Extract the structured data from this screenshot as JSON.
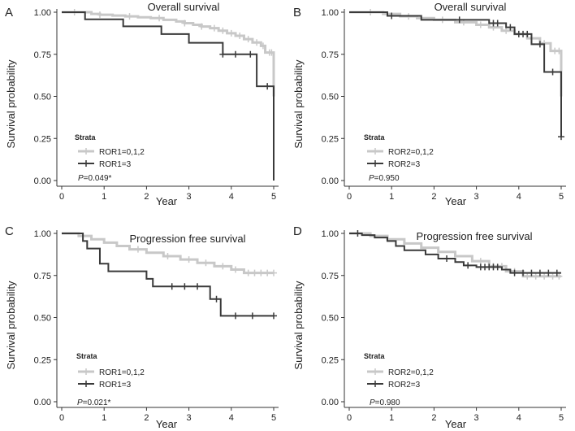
{
  "colors": {
    "gray": "#c8c8c8",
    "dark": "#3a3a3a",
    "axis": "#333333",
    "text": "#222222"
  },
  "chart_data": [
    {
      "type": "line",
      "panel_label": "A",
      "title": "Overall survival",
      "xlabel": "Year",
      "ylabel": "Survival probability",
      "xlim": [
        0,
        5
      ],
      "ylim": [
        0,
        1
      ],
      "xticks": [
        "0",
        "1",
        "2",
        "3",
        "4",
        "5"
      ],
      "yticks": [
        "0.00",
        "0.25",
        "0.50",
        "0.75",
        "1.00"
      ],
      "legend_title": "Strata",
      "pvalue_prefix": "P",
      "pvalue_text": "=0.049*",
      "series": [
        {
          "name": "ROR1=0,1,2",
          "color": "gray",
          "steps": [
            [
              0,
              1
            ],
            [
              0.7,
              0.99
            ],
            [
              0.9,
              0.985
            ],
            [
              1.2,
              0.98
            ],
            [
              1.5,
              0.975
            ],
            [
              1.8,
              0.97
            ],
            [
              2.1,
              0.965
            ],
            [
              2.4,
              0.955
            ],
            [
              2.7,
              0.945
            ],
            [
              2.9,
              0.935
            ],
            [
              3.1,
              0.925
            ],
            [
              3.3,
              0.915
            ],
            [
              3.5,
              0.905
            ],
            [
              3.7,
              0.89
            ],
            [
              3.9,
              0.875
            ],
            [
              4.1,
              0.86
            ],
            [
              4.3,
              0.84
            ],
            [
              4.5,
              0.82
            ],
            [
              4.7,
              0.8
            ],
            [
              4.8,
              0.76
            ],
            [
              5,
              0.5
            ]
          ],
          "censors": [
            [
              0.3,
              1
            ],
            [
              0.9,
              0.985
            ],
            [
              1.6,
              0.975
            ],
            [
              2.3,
              0.965
            ],
            [
              2.9,
              0.935
            ],
            [
              3.3,
              0.915
            ],
            [
              3.6,
              0.905
            ],
            [
              3.8,
              0.89
            ],
            [
              4.0,
              0.875
            ],
            [
              4.2,
              0.86
            ],
            [
              4.4,
              0.84
            ],
            [
              4.6,
              0.82
            ],
            [
              4.75,
              0.8
            ],
            [
              4.9,
              0.76
            ],
            [
              4.95,
              0.76
            ]
          ]
        },
        {
          "name": "ROR1=3",
          "color": "dark",
          "steps": [
            [
              0,
              1
            ],
            [
              0.55,
              0.958
            ],
            [
              1.45,
              0.916
            ],
            [
              2.35,
              0.87
            ],
            [
              3.0,
              0.818
            ],
            [
              3.8,
              0.75
            ],
            [
              4.6,
              0.56
            ],
            [
              5,
              0
            ]
          ],
          "censors": [
            [
              3.8,
              0.75
            ],
            [
              4.1,
              0.75
            ],
            [
              4.45,
              0.75
            ],
            [
              4.85,
              0.56
            ]
          ]
        }
      ]
    },
    {
      "type": "line",
      "panel_label": "B",
      "title": "Overall survival",
      "xlabel": "Year",
      "ylabel": "Survival probability",
      "xlim": [
        0,
        5
      ],
      "ylim": [
        0,
        1
      ],
      "xticks": [
        "0",
        "1",
        "2",
        "3",
        "4",
        "5"
      ],
      "yticks": [
        "0.00",
        "0.25",
        "0.50",
        "0.75",
        "1.00"
      ],
      "legend_title": "Strata",
      "pvalue_prefix": "P",
      "pvalue_text": "=0.950",
      "series": [
        {
          "name": "ROR2=0,1,2",
          "color": "gray",
          "steps": [
            [
              0,
              1
            ],
            [
              0.8,
              0.99
            ],
            [
              1.2,
              0.975
            ],
            [
              1.6,
              0.965
            ],
            [
              2.0,
              0.955
            ],
            [
              2.5,
              0.94
            ],
            [
              3.0,
              0.925
            ],
            [
              3.3,
              0.91
            ],
            [
              3.6,
              0.89
            ],
            [
              3.9,
              0.87
            ],
            [
              4.2,
              0.845
            ],
            [
              4.5,
              0.815
            ],
            [
              4.75,
              0.77
            ],
            [
              5,
              0.5
            ]
          ],
          "censors": [
            [
              0.5,
              1
            ],
            [
              1.4,
              0.975
            ],
            [
              2.2,
              0.955
            ],
            [
              2.7,
              0.94
            ],
            [
              3.1,
              0.925
            ],
            [
              3.4,
              0.91
            ],
            [
              3.7,
              0.89
            ],
            [
              4.0,
              0.87
            ],
            [
              4.3,
              0.845
            ],
            [
              4.6,
              0.815
            ],
            [
              4.85,
              0.77
            ],
            [
              4.95,
              0.77
            ]
          ]
        },
        {
          "name": "ROR2=3",
          "color": "dark",
          "steps": [
            [
              0,
              1
            ],
            [
              0.9,
              0.978
            ],
            [
              1.7,
              0.955
            ],
            [
              3.3,
              0.935
            ],
            [
              3.7,
              0.91
            ],
            [
              3.9,
              0.87
            ],
            [
              4.3,
              0.81
            ],
            [
              4.6,
              0.645
            ],
            [
              5,
              0.26
            ]
          ],
          "censors": [
            [
              1.0,
              0.978
            ],
            [
              2.6,
              0.955
            ],
            [
              3.4,
              0.935
            ],
            [
              3.5,
              0.935
            ],
            [
              3.8,
              0.91
            ],
            [
              4.0,
              0.87
            ],
            [
              4.1,
              0.87
            ],
            [
              4.2,
              0.87
            ],
            [
              4.5,
              0.81
            ],
            [
              4.8,
              0.645
            ],
            [
              5.0,
              0.26
            ]
          ]
        }
      ]
    },
    {
      "type": "line",
      "panel_label": "C",
      "title": "Progression free survival",
      "xlabel": "Year",
      "ylabel": "Survival probability",
      "xlim": [
        0,
        5
      ],
      "ylim": [
        0,
        1
      ],
      "xticks": [
        "0",
        "1",
        "2",
        "3",
        "4",
        "5"
      ],
      "yticks": [
        "0.00",
        "0.25",
        "0.50",
        "0.75",
        "1.00"
      ],
      "legend_title": "Strata",
      "pvalue_prefix": "P",
      "pvalue_text": "=0.021*",
      "series": [
        {
          "name": "ROR1=0,1,2",
          "color": "gray",
          "steps": [
            [
              0,
              1
            ],
            [
              0.4,
              0.985
            ],
            [
              0.7,
              0.965
            ],
            [
              1.0,
              0.945
            ],
            [
              1.3,
              0.925
            ],
            [
              1.6,
              0.905
            ],
            [
              2.0,
              0.885
            ],
            [
              2.4,
              0.865
            ],
            [
              2.8,
              0.845
            ],
            [
              3.2,
              0.825
            ],
            [
              3.6,
              0.805
            ],
            [
              4.0,
              0.785
            ],
            [
              4.3,
              0.765
            ],
            [
              5,
              0.765
            ]
          ],
          "censors": [
            [
              1.8,
              0.905
            ],
            [
              2.5,
              0.865
            ],
            [
              3.0,
              0.845
            ],
            [
              3.4,
              0.825
            ],
            [
              3.8,
              0.805
            ],
            [
              4.1,
              0.785
            ],
            [
              4.4,
              0.765
            ],
            [
              4.55,
              0.765
            ],
            [
              4.7,
              0.765
            ],
            [
              4.85,
              0.765
            ],
            [
              5.0,
              0.765
            ]
          ]
        },
        {
          "name": "ROR1=3",
          "color": "dark",
          "steps": [
            [
              0,
              1
            ],
            [
              0.5,
              0.955
            ],
            [
              0.6,
              0.91
            ],
            [
              0.9,
              0.82
            ],
            [
              1.1,
              0.775
            ],
            [
              2.0,
              0.73
            ],
            [
              2.15,
              0.685
            ],
            [
              3.5,
              0.61
            ],
            [
              3.75,
              0.51
            ],
            [
              5,
              0.51
            ]
          ],
          "censors": [
            [
              2.6,
              0.685
            ],
            [
              2.9,
              0.685
            ],
            [
              3.2,
              0.685
            ],
            [
              3.65,
              0.61
            ],
            [
              4.1,
              0.51
            ],
            [
              4.5,
              0.51
            ],
            [
              5.0,
              0.51
            ]
          ]
        }
      ]
    },
    {
      "type": "line",
      "panel_label": "D",
      "title": "Progression free survival",
      "xlabel": "Year",
      "ylabel": "Survival probability",
      "xlim": [
        0,
        5
      ],
      "ylim": [
        0,
        1
      ],
      "xticks": [
        "0",
        "1",
        "2",
        "3",
        "4",
        "5"
      ],
      "yticks": [
        "0.00",
        "0.25",
        "0.50",
        "0.75",
        "1.00"
      ],
      "legend_title": "Strata",
      "pvalue_prefix": "P",
      "pvalue_text": "=0.980",
      "series": [
        {
          "name": "ROR2=0,1,2",
          "color": "gray",
          "steps": [
            [
              0,
              1
            ],
            [
              0.5,
              0.985
            ],
            [
              0.9,
              0.965
            ],
            [
              1.3,
              0.94
            ],
            [
              1.7,
              0.915
            ],
            [
              2.1,
              0.89
            ],
            [
              2.5,
              0.865
            ],
            [
              2.9,
              0.835
            ],
            [
              3.3,
              0.805
            ],
            [
              3.7,
              0.775
            ],
            [
              4.1,
              0.745
            ],
            [
              5,
              0.745
            ]
          ],
          "censors": [
            [
              3.1,
              0.835
            ],
            [
              3.4,
              0.805
            ],
            [
              3.6,
              0.805
            ],
            [
              3.9,
              0.775
            ],
            [
              4.2,
              0.745
            ],
            [
              4.4,
              0.745
            ],
            [
              4.6,
              0.745
            ],
            [
              4.8,
              0.745
            ],
            [
              4.95,
              0.745
            ]
          ]
        },
        {
          "name": "ROR2=3",
          "color": "dark",
          "steps": [
            [
              0,
              1
            ],
            [
              0.3,
              0.99
            ],
            [
              0.6,
              0.975
            ],
            [
              0.9,
              0.955
            ],
            [
              1.1,
              0.925
            ],
            [
              1.3,
              0.9
            ],
            [
              1.8,
              0.875
            ],
            [
              2.1,
              0.85
            ],
            [
              2.5,
              0.83
            ],
            [
              2.7,
              0.81
            ],
            [
              3.0,
              0.8
            ],
            [
              3.6,
              0.785
            ],
            [
              3.8,
              0.765
            ],
            [
              5,
              0.765
            ]
          ],
          "censors": [
            [
              0.2,
              1
            ],
            [
              2.3,
              0.85
            ],
            [
              2.8,
              0.81
            ],
            [
              3.1,
              0.8
            ],
            [
              3.2,
              0.8
            ],
            [
              3.3,
              0.8
            ],
            [
              3.4,
              0.8
            ],
            [
              3.5,
              0.8
            ],
            [
              3.9,
              0.765
            ],
            [
              4.1,
              0.765
            ],
            [
              4.3,
              0.765
            ],
            [
              4.5,
              0.765
            ],
            [
              4.7,
              0.765
            ],
            [
              4.9,
              0.765
            ]
          ]
        }
      ]
    }
  ]
}
